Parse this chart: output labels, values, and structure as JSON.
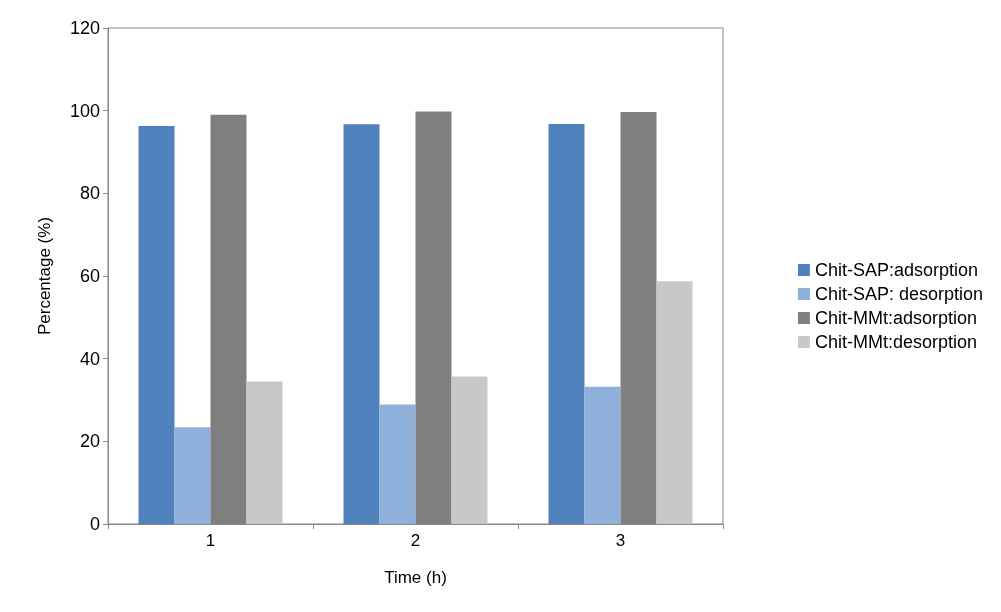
{
  "chart_data": {
    "type": "bar",
    "xlabel": "Time (h)",
    "ylabel": "Percentage (%)",
    "categories": [
      "1",
      "2",
      "3"
    ],
    "series": [
      {
        "name": "Chit-SAP:adsorption",
        "color": "#4f81bd",
        "values": [
          96.3,
          96.7,
          96.8
        ]
      },
      {
        "name": "Chit-SAP: desorption",
        "color": "#8eb0da",
        "values": [
          23.4,
          28.9,
          33.2
        ]
      },
      {
        "name": "Chit-MMt:adsorption",
        "color": "#7f7f7f",
        "values": [
          99.0,
          99.8,
          99.7
        ]
      },
      {
        "name": "Chit-MMt:desorption",
        "color": "#c8c8c8",
        "values": [
          34.5,
          35.7,
          58.7
        ]
      }
    ],
    "ylim": [
      0,
      120
    ],
    "yticks": [
      0,
      20,
      40,
      60,
      80,
      100,
      120
    ],
    "grid": false,
    "legend": "right"
  }
}
